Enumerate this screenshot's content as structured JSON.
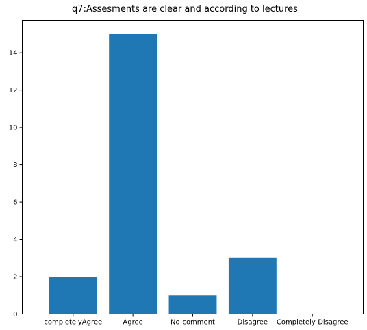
{
  "chart_data": {
    "type": "bar",
    "title": "q7:Assesments are clear and according to lectures",
    "xlabel": "",
    "ylabel": "",
    "categories": [
      "completelyAgree",
      "Agree",
      "No-comment",
      "Disagree",
      "Completely-Disagree"
    ],
    "values": [
      2,
      15,
      1,
      3,
      0
    ],
    "ylim": [
      0,
      15.75
    ],
    "yticks": [
      "0",
      "2",
      "4",
      "6",
      "8",
      "10",
      "12",
      "14"
    ],
    "bar_color": "#1f77b4",
    "grid": false,
    "legend": "none"
  }
}
